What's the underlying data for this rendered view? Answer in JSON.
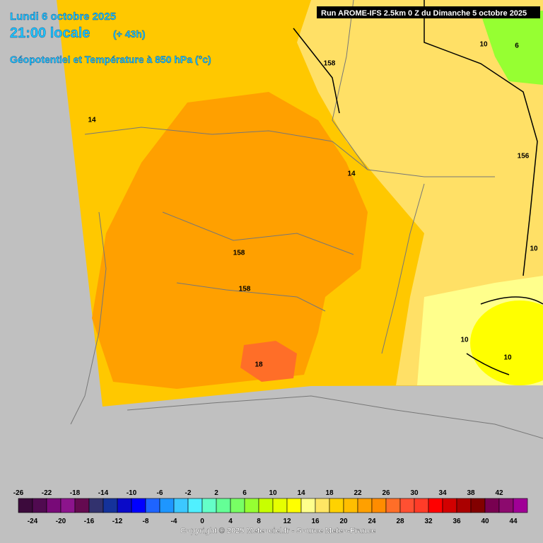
{
  "header": {
    "date": "Lundi 6 octobre 2025",
    "time": "21:00 locale",
    "lead": "(+ 43h)",
    "parameter": "Géopotentiel et Température à 850 hPa (°c)",
    "run": "Run AROME-IFS 2.5km 0 Z du Dimanche 5 octobre 2025"
  },
  "contour_labels": [
    "158",
    "14",
    "14",
    "158",
    "158",
    "18",
    "156",
    "10",
    "6",
    "10",
    "10",
    "10"
  ],
  "legend": {
    "values": [
      -26,
      -24,
      -22,
      -20,
      -18,
      -16,
      -14,
      -12,
      -10,
      -8,
      -6,
      -4,
      -2,
      0,
      2,
      4,
      6,
      8,
      10,
      12,
      14,
      16,
      18,
      20,
      22,
      24,
      26,
      28,
      30,
      32,
      34,
      36,
      38,
      40,
      42,
      44
    ],
    "colors": [
      "#3c0a3c",
      "#500a50",
      "#780a78",
      "#8c148c",
      "#640a50",
      "#32326e",
      "#14329b",
      "#0a0ac8",
      "#0000ff",
      "#1e64ff",
      "#1e96ff",
      "#3cc8ff",
      "#50f0ff",
      "#64ffc8",
      "#64ff96",
      "#78ff64",
      "#96ff32",
      "#c8ff00",
      "#e6ff00",
      "#ffff00",
      "#ffff8c",
      "#ffe664",
      "#ffd200",
      "#ffbe00",
      "#ffa000",
      "#ff8c00",
      "#ff6e28",
      "#ff5032",
      "#ff3c28",
      "#ff0000",
      "#d20000",
      "#aa0000",
      "#820000",
      "#780050",
      "#8c0a6e",
      "#a00096"
    ]
  },
  "copyright": "Copyright © 2025 Meteociel.fr - Source Meteo-France"
}
